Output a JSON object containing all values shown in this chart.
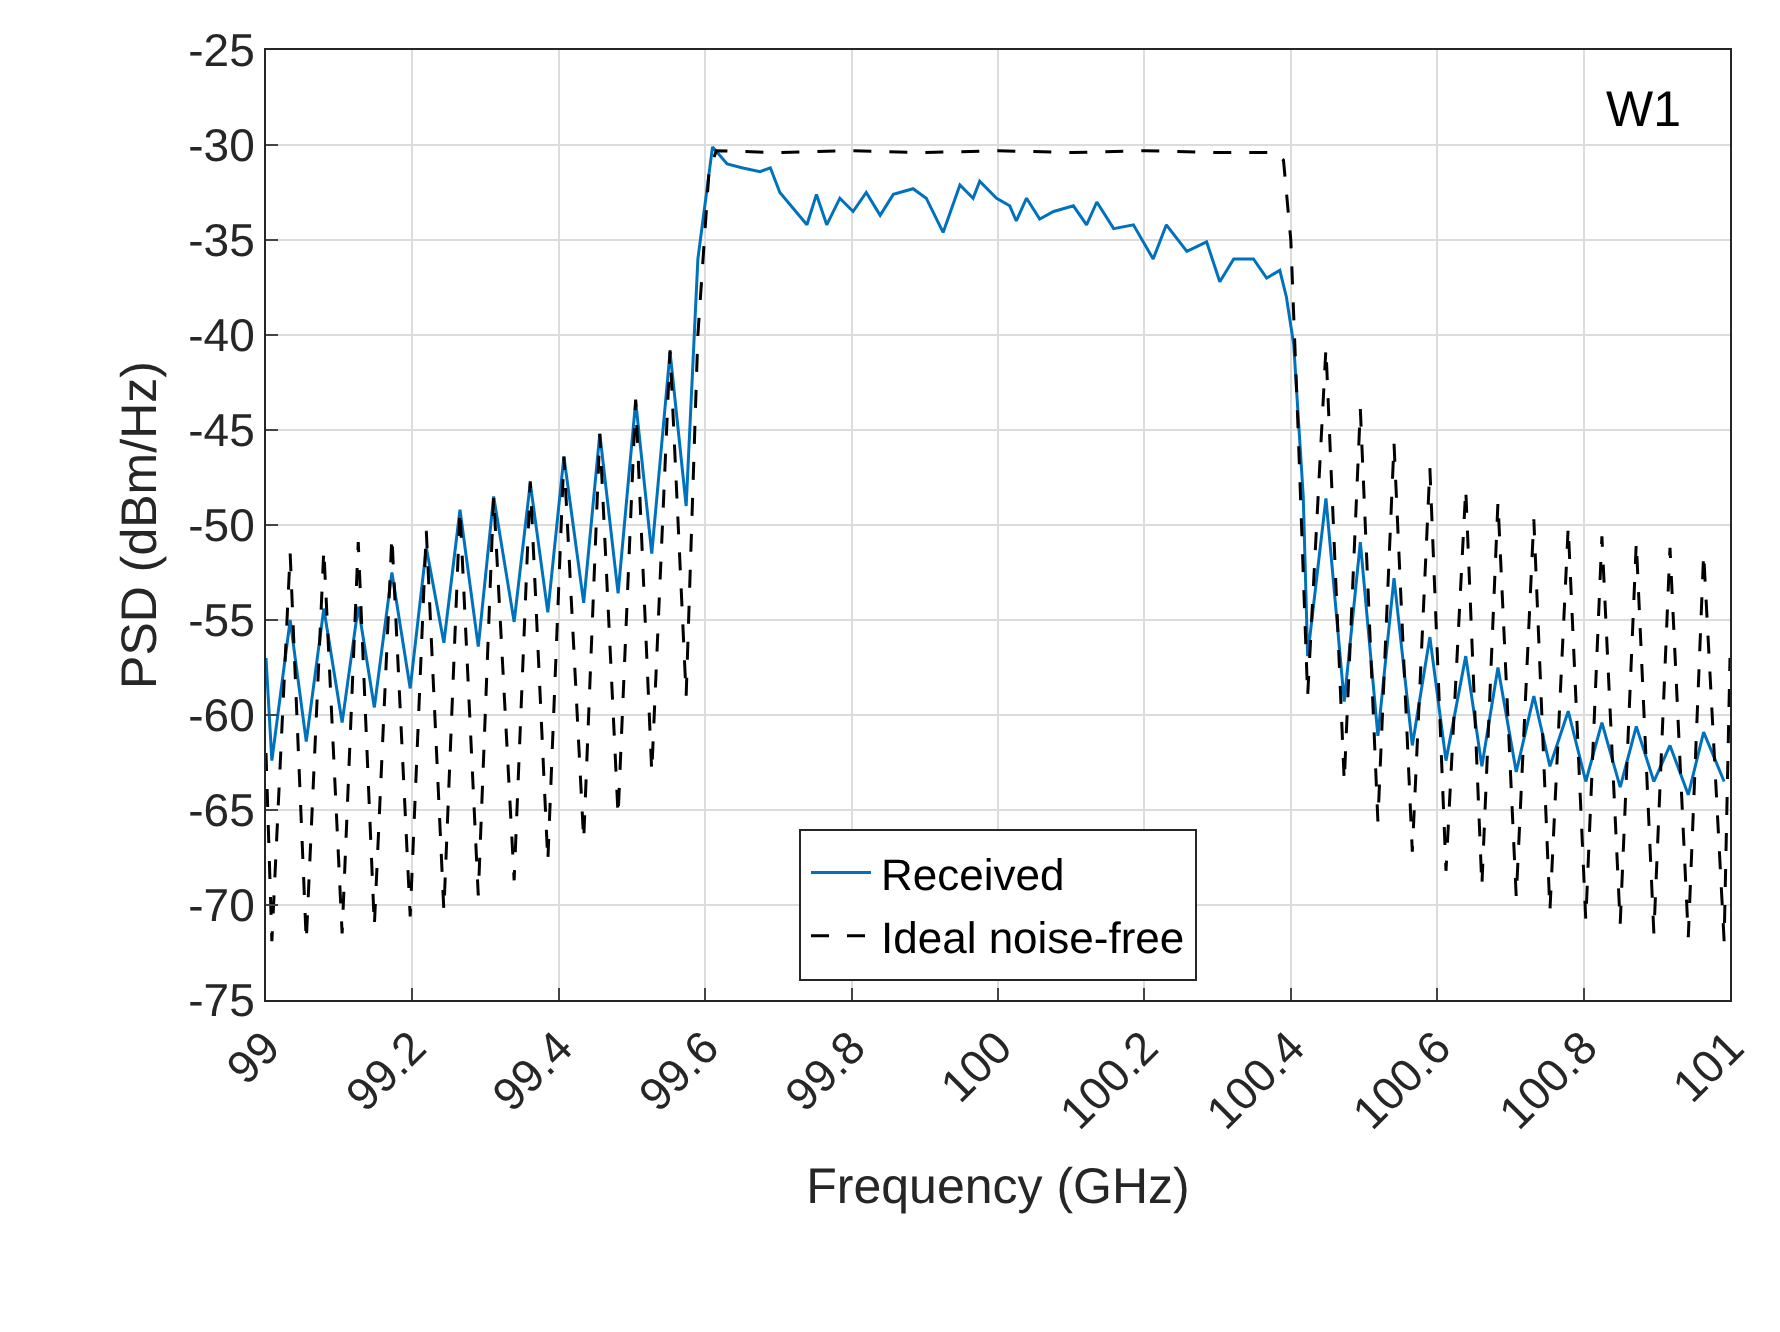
{
  "chart_data": {
    "type": "line",
    "xlabel": "Frequency (GHz)",
    "ylabel": "PSD (dBm/Hz)",
    "xlim": [
      99,
      101
    ],
    "xticks": [
      99,
      99.2,
      99.4,
      99.6,
      99.8,
      100,
      100.2,
      100.4,
      100.6,
      100.8,
      101
    ],
    "ylim": [
      -75,
      -25
    ],
    "yticks": [
      -75,
      -70,
      -65,
      -60,
      -55,
      -50,
      -45,
      -40,
      -35,
      -30,
      -25
    ],
    "grid": true,
    "legend": "bottom",
    "marker": "none",
    "annotations": [
      "W1"
    ],
    "series": [
      {
        "name": "Received",
        "color": "#0072bd",
        "line_style": "solid",
        "x": [
          99.0,
          99.008,
          99.033,
          99.055,
          99.079,
          99.104,
          99.126,
          99.148,
          99.172,
          99.197,
          99.219,
          99.243,
          99.265,
          99.29,
          99.311,
          99.339,
          99.361,
          99.385,
          99.407,
          99.434,
          99.456,
          99.481,
          99.505,
          99.527,
          99.552,
          99.574,
          99.59,
          99.61,
          99.63,
          99.65,
          99.675,
          99.689,
          99.702,
          99.739,
          99.752,
          99.766,
          99.784,
          99.802,
          99.82,
          99.839,
          99.857,
          99.884,
          99.902,
          99.925,
          99.948,
          99.966,
          99.975,
          99.998,
          100.016,
          100.025,
          100.039,
          100.057,
          100.076,
          100.103,
          100.121,
          100.135,
          100.158,
          100.185,
          100.212,
          100.23,
          100.258,
          100.285,
          100.303,
          100.322,
          100.349,
          100.367,
          100.385,
          100.394,
          100.404,
          100.417,
          100.423,
          100.448,
          100.473,
          100.495,
          100.519,
          100.541,
          100.566,
          100.59,
          100.612,
          100.639,
          100.661,
          100.683,
          100.708,
          100.732,
          100.754,
          100.779,
          100.803,
          100.825,
          100.85,
          100.872,
          100.896,
          100.918,
          100.943,
          100.964,
          100.992
        ],
        "values": [
          -57,
          -62.4,
          -55.0,
          -61.4,
          -54.4,
          -60.4,
          -54.3,
          -59.6,
          -52.5,
          -58.6,
          -51.2,
          -56.2,
          -49.2,
          -56.4,
          -48.5,
          -55.1,
          -47.8,
          -54.6,
          -46.4,
          -54.1,
          -45.2,
          -53.6,
          -43.5,
          -51.5,
          -40.9,
          -49.0,
          -36,
          -30.1,
          -31.0,
          -31.2,
          -31.4,
          -31.2,
          -32.5,
          -34.2,
          -32.6,
          -34.2,
          -32.8,
          -33.5,
          -32.5,
          -33.7,
          -32.6,
          -32.3,
          -32.8,
          -34.6,
          -32.1,
          -32.8,
          -31.9,
          -32.8,
          -33.2,
          -34.0,
          -32.8,
          -33.9,
          -33.5,
          -33.2,
          -34.2,
          -33.0,
          -34.4,
          -34.2,
          -36.0,
          -34.2,
          -35.6,
          -35.1,
          -37.2,
          -36.0,
          -36.0,
          -37.0,
          -36.6,
          -38.0,
          -40.5,
          -48.5,
          -56.9,
          -48.6,
          -59.3,
          -50.9,
          -61.1,
          -52.8,
          -61.6,
          -55.9,
          -62.4,
          -56.9,
          -62.7,
          -57.5,
          -63.0,
          -59.0,
          -62.7,
          -59.8,
          -63.5,
          -60.4,
          -63.8,
          -60.6,
          -63.5,
          -61.6,
          -64.2,
          -60.9,
          -63.5
        ]
      },
      {
        "name": "Ideal noise-free",
        "color": "#000000",
        "line_style": "dashed",
        "x": [
          99.0,
          99.008,
          99.033,
          99.055,
          99.079,
          99.104,
          99.126,
          99.148,
          99.172,
          99.197,
          99.219,
          99.243,
          99.265,
          99.29,
          99.311,
          99.339,
          99.361,
          99.385,
          99.407,
          99.434,
          99.456,
          99.481,
          99.505,
          99.527,
          99.552,
          99.574,
          99.59,
          99.605,
          99.615,
          99.7,
          99.8,
          99.9,
          100.0,
          100.1,
          100.2,
          100.3,
          100.38,
          100.39,
          100.4,
          100.41,
          100.423,
          100.448,
          100.473,
          100.495,
          100.519,
          100.541,
          100.566,
          100.59,
          100.612,
          100.639,
          100.661,
          100.683,
          100.708,
          100.732,
          100.754,
          100.779,
          100.803,
          100.825,
          100.85,
          100.872,
          100.896,
          100.918,
          100.943,
          100.964,
          100.992,
          101.0
        ],
        "values": [
          -62,
          -71.9,
          -51.5,
          -71.9,
          -51.3,
          -71.5,
          -50.9,
          -71.1,
          -50.6,
          -70.6,
          -50.3,
          -70.3,
          -49.2,
          -69.5,
          -48.5,
          -68.7,
          -47.7,
          -67.7,
          -46.4,
          -66.6,
          -45.2,
          -65.3,
          -43.4,
          -63.0,
          -40.8,
          -59.0,
          -40,
          -31.5,
          -30.3,
          -30.4,
          -30.3,
          -30.4,
          -30.3,
          -30.4,
          -30.3,
          -30.4,
          -30.4,
          -30.8,
          -35,
          -45,
          -59.0,
          -40.7,
          -63.5,
          -43.9,
          -65.6,
          -45.7,
          -67.2,
          -47.0,
          -68.2,
          -48.1,
          -69.0,
          -48.8,
          -69.6,
          -49.7,
          -70.3,
          -50.1,
          -70.8,
          -50.6,
          -71.0,
          -50.9,
          -71.5,
          -51.2,
          -71.7,
          -51.5,
          -71.9,
          -57
        ]
      }
    ]
  }
}
